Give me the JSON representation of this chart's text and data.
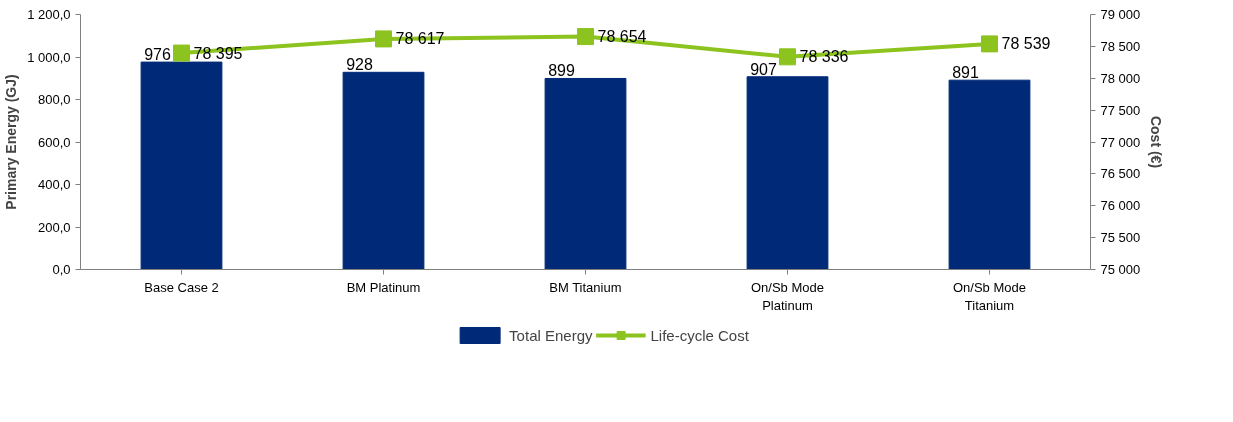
{
  "chart_data": {
    "type": "bar",
    "ylabel": "Primary Energy (GJ)",
    "y2label": "Cost (€)",
    "categories": [
      "Base Case 2",
      "BM Platinum",
      "BM Titanium",
      "On/Sb Mode\nPlatinum",
      "On/Sb Mode\nTitanium"
    ],
    "series": [
      {
        "name": "Total Energy",
        "color": "#002a78",
        "values": [
          976,
          928,
          899,
          907,
          891
        ]
      },
      {
        "name": "Life-cycle Cost",
        "type": "line",
        "axis": "y2",
        "color": "#8cc31f",
        "marker": "square",
        "values": [
          78395,
          78617,
          78654,
          78336,
          78539
        ]
      }
    ],
    "ylim": [
      0,
      1200
    ],
    "yticks": [
      {
        "value": 0,
        "label": "0,0"
      },
      {
        "value": 200,
        "label": "200,0"
      },
      {
        "value": 400,
        "label": "400,0"
      },
      {
        "value": 600,
        "label": "600,0"
      },
      {
        "value": 800,
        "label": "800,0"
      },
      {
        "value": 1000,
        "label": "1 000,0"
      },
      {
        "value": 1200,
        "label": "1 200,0"
      }
    ],
    "y2lim": [
      75000,
      79000
    ],
    "y2ticks": [
      {
        "value": 75000,
        "label": "75 000"
      },
      {
        "value": 75500,
        "label": "75 500"
      },
      {
        "value": 76000,
        "label": "76 000"
      },
      {
        "value": 76500,
        "label": "76 500"
      },
      {
        "value": 77000,
        "label": "77 000"
      },
      {
        "value": 77500,
        "label": "77 500"
      },
      {
        "value": 78000,
        "label": "78 000"
      },
      {
        "value": 78500,
        "label": "78 500"
      },
      {
        "value": 79000,
        "label": "79 000"
      }
    ],
    "data_labels": true,
    "grid": false,
    "legend": "bottom"
  }
}
